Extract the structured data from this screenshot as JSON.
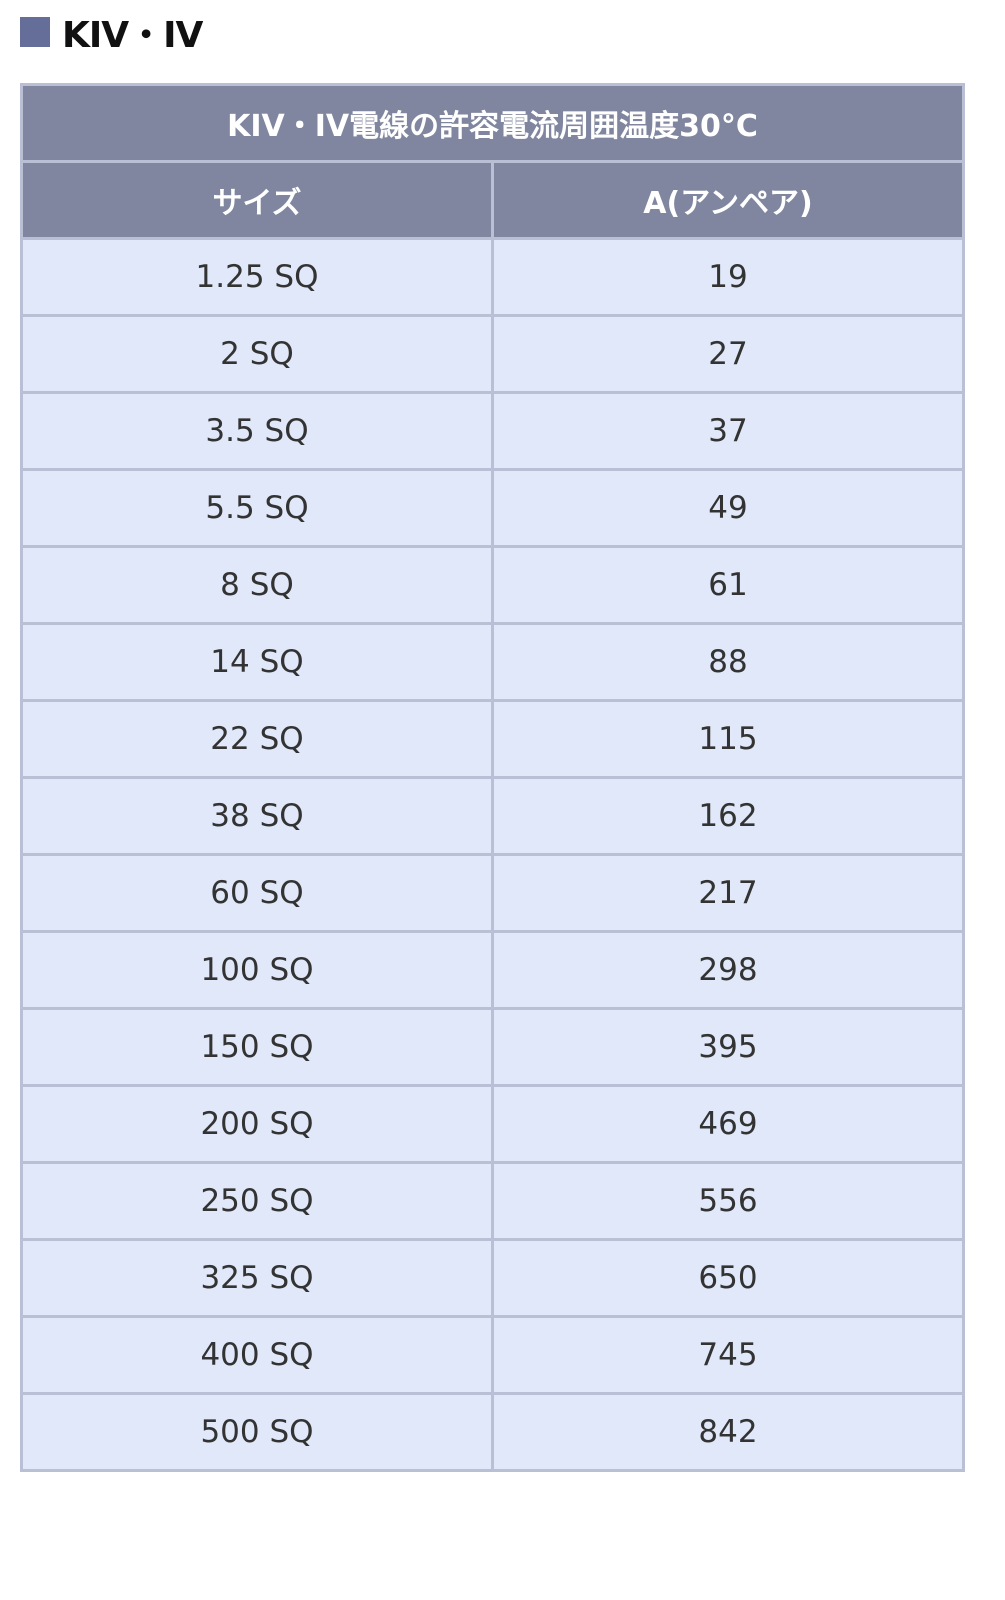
{
  "heading": "KIV・IV",
  "colors": {
    "header_bg": "#80869f",
    "row_bg": "#e0e8f9",
    "marker": "#646e98"
  },
  "table": {
    "title": "KIV・IV電線の許容電流周囲温度30°C",
    "columns": [
      "サイズ",
      "A(アンペア)"
    ],
    "rows": [
      [
        "1.25 SQ",
        "19"
      ],
      [
        "2 SQ",
        "27"
      ],
      [
        "3.5 SQ",
        "37"
      ],
      [
        "5.5 SQ",
        "49"
      ],
      [
        "8 SQ",
        "61"
      ],
      [
        "14 SQ",
        "88"
      ],
      [
        "22 SQ",
        "115"
      ],
      [
        "38 SQ",
        "162"
      ],
      [
        "60 SQ",
        "217"
      ],
      [
        "100 SQ",
        "298"
      ],
      [
        "150 SQ",
        "395"
      ],
      [
        "200 SQ",
        "469"
      ],
      [
        "250 SQ",
        "556"
      ],
      [
        "325 SQ",
        "650"
      ],
      [
        "400 SQ",
        "745"
      ],
      [
        "500 SQ",
        "842"
      ]
    ]
  }
}
